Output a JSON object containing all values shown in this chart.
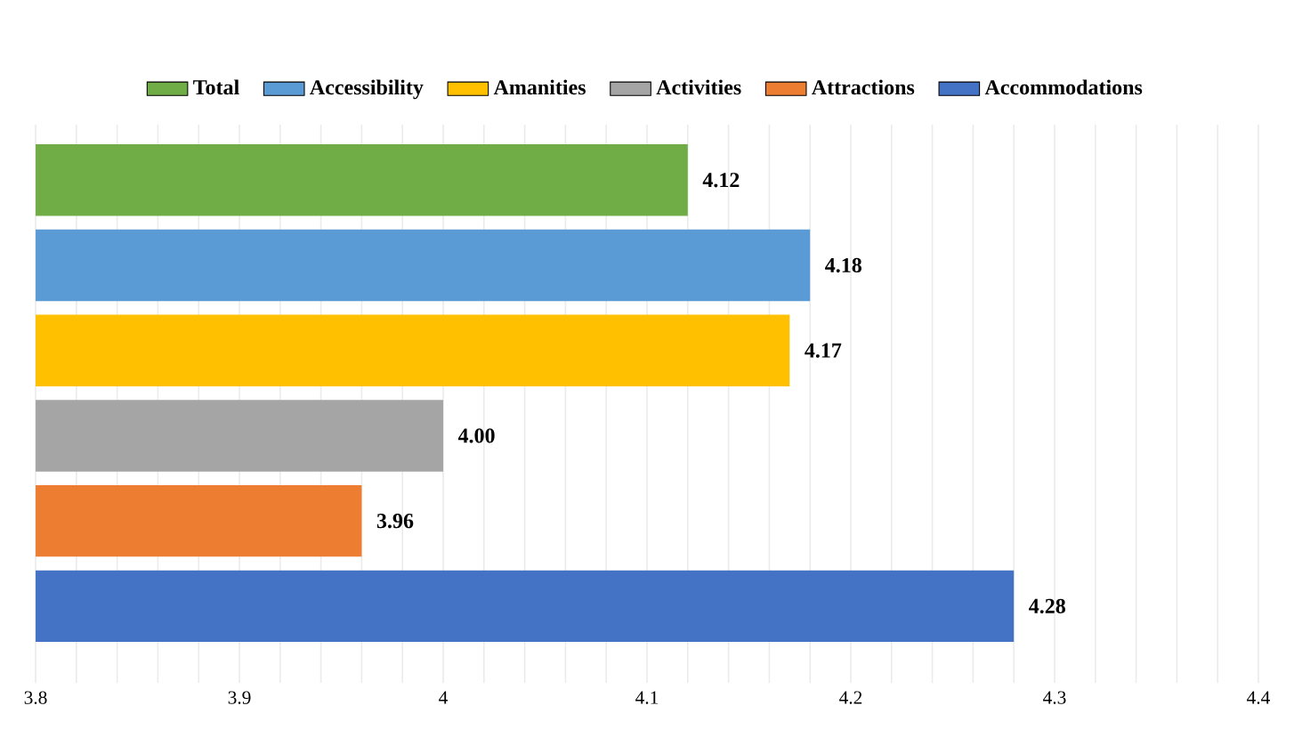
{
  "chart_data": {
    "type": "bar",
    "orientation": "horizontal",
    "categories": [
      null
    ],
    "series": [
      {
        "name": "Total",
        "color": "#70ad47",
        "values": [
          4.12
        ],
        "value_labels": [
          "4.12"
        ]
      },
      {
        "name": "Accessibility",
        "color": "#5b9bd5",
        "values": [
          4.18
        ],
        "value_labels": [
          "4.18"
        ]
      },
      {
        "name": "Amanities",
        "color": "#ffc000",
        "values": [
          4.17
        ],
        "value_labels": [
          "4.17"
        ]
      },
      {
        "name": "Activities",
        "color": "#a5a5a5",
        "values": [
          4.0
        ],
        "value_labels": [
          "4.00"
        ]
      },
      {
        "name": "Attractions",
        "color": "#ed7d31",
        "values": [
          3.96
        ],
        "value_labels": [
          "3.96"
        ]
      },
      {
        "name": "Accommodations",
        "color": "#4472c4",
        "values": [
          4.28
        ],
        "value_labels": [
          "4.28"
        ]
      }
    ],
    "xlim": [
      3.8,
      4.4
    ],
    "xticks": [
      3.8,
      3.9,
      4,
      4.1,
      4.2,
      4.3,
      4.4
    ],
    "grid": "x",
    "legend": "top"
  }
}
